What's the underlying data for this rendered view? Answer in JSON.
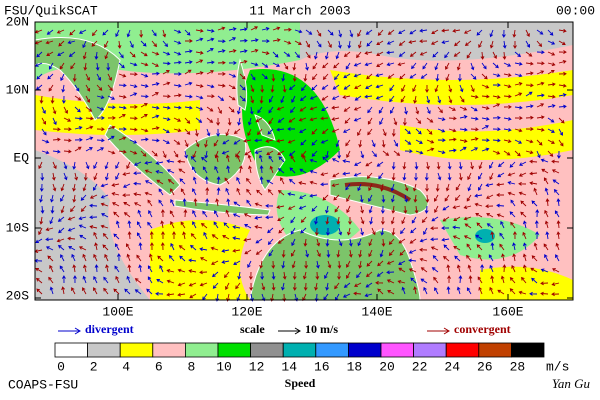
{
  "header": {
    "title": "FSU/QuikSCAT",
    "date": "11 March 2003",
    "time": "00:00"
  },
  "map": {
    "lat_labels": [
      "20N",
      "10N",
      "EQ",
      "10S",
      "20S"
    ],
    "lon_labels": [
      "100E",
      "120E",
      "140E",
      "160E"
    ]
  },
  "legend": {
    "divergent": "divergent",
    "scale": "scale",
    "scale_value": "10 m/s",
    "convergent": "convergent"
  },
  "colorbar": {
    "ticks": [
      0,
      2,
      4,
      6,
      8,
      10,
      12,
      14,
      16,
      18,
      20,
      22,
      24,
      26,
      28
    ],
    "unit": "m/s",
    "label": "Speed",
    "colors": [
      "#ffffff",
      "#c8c8c8",
      "#ffff00",
      "#ffc0c0",
      "#90ee90",
      "#00e000",
      "#909090",
      "#00b0b0",
      "#3399ff",
      "#0000cc",
      "#ff55ff",
      "#b07cff",
      "#ff0000",
      "#c04000",
      "#000000"
    ]
  },
  "footer": {
    "left": "COAPS-FSU",
    "right": "Yan Gu"
  }
}
